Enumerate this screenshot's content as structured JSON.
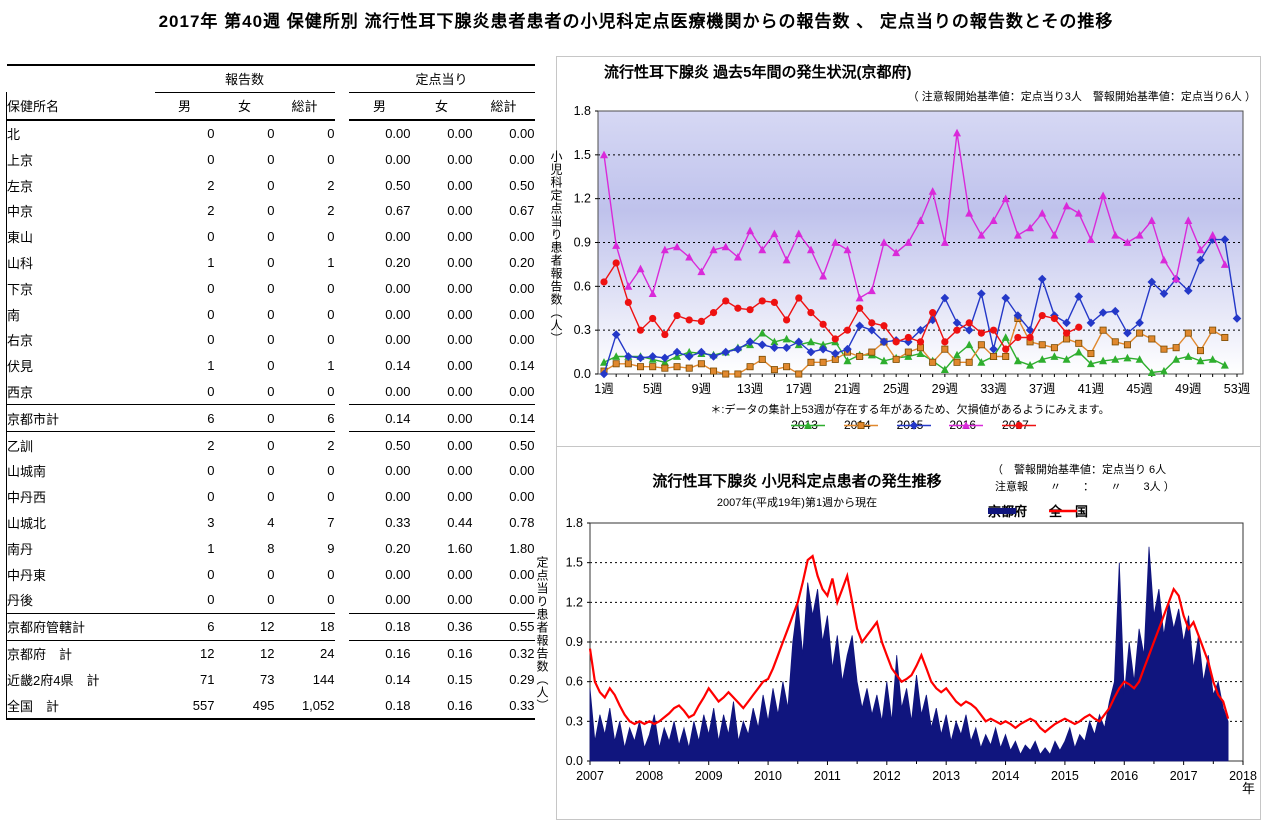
{
  "page_title": "2017年 第40週 保健所別 流行性耳下腺炎患者患者の小児科定点医療機関からの報告数 、 定点当りの報告数とその推移",
  "table": {
    "group_headers": [
      "報告数",
      "定点当り"
    ],
    "name_header": "保健所名",
    "sub_headers": [
      "男",
      "女",
      "総計",
      "男",
      "女",
      "総計"
    ],
    "sections": [
      {
        "type": "data",
        "rows": [
          [
            "北",
            "0",
            "0",
            "0",
            "0.00",
            "0.00",
            "0.00"
          ],
          [
            "上京",
            "0",
            "0",
            "0",
            "0.00",
            "0.00",
            "0.00"
          ],
          [
            "左京",
            "2",
            "0",
            "2",
            "0.50",
            "0.00",
            "0.50"
          ],
          [
            "中京",
            "2",
            "0",
            "2",
            "0.67",
            "0.00",
            "0.67"
          ],
          [
            "東山",
            "0",
            "0",
            "0",
            "0.00",
            "0.00",
            "0.00"
          ],
          [
            "山科",
            "1",
            "0",
            "1",
            "0.20",
            "0.00",
            "0.20"
          ],
          [
            "下京",
            "0",
            "0",
            "0",
            "0.00",
            "0.00",
            "0.00"
          ],
          [
            "南",
            "0",
            "0",
            "0",
            "0.00",
            "0.00",
            "0.00"
          ],
          [
            "右京",
            "0",
            "0",
            "0",
            "0.00",
            "0.00",
            "0.00"
          ],
          [
            "伏見",
            "1",
            "0",
            "1",
            "0.14",
            "0.00",
            "0.14"
          ],
          [
            "西京",
            "0",
            "0",
            "0",
            "0.00",
            "0.00",
            "0.00"
          ]
        ]
      },
      {
        "type": "summary",
        "rows": [
          [
            "京都市計",
            "6",
            "0",
            "6",
            "0.14",
            "0.00",
            "0.14"
          ]
        ]
      },
      {
        "type": "data",
        "rows": [
          [
            "乙訓",
            "2",
            "0",
            "2",
            "0.50",
            "0.00",
            "0.50"
          ],
          [
            "山城南",
            "0",
            "0",
            "0",
            "0.00",
            "0.00",
            "0.00"
          ],
          [
            "中丹西",
            "0",
            "0",
            "0",
            "0.00",
            "0.00",
            "0.00"
          ],
          [
            "山城北",
            "3",
            "4",
            "7",
            "0.33",
            "0.44",
            "0.78"
          ],
          [
            "南丹",
            "1",
            "8",
            "9",
            "0.20",
            "1.60",
            "1.80"
          ],
          [
            "中丹東",
            "0",
            "0",
            "0",
            "0.00",
            "0.00",
            "0.00"
          ],
          [
            "丹後",
            "0",
            "0",
            "0",
            "0.00",
            "0.00",
            "0.00"
          ]
        ]
      },
      {
        "type": "summary",
        "rows": [
          [
            "京都府管轄計",
            "6",
            "12",
            "18",
            "0.18",
            "0.36",
            "0.55"
          ]
        ]
      },
      {
        "type": "totals",
        "rows": [
          [
            "京都府　計",
            "12",
            "12",
            "24",
            "0.16",
            "0.16",
            "0.32"
          ],
          [
            "近畿2府4県　計",
            "71",
            "73",
            "144",
            "0.14",
            "0.15",
            "0.29"
          ],
          [
            "全国　計",
            "557",
            "495",
            "1,052",
            "0.18",
            "0.16",
            "0.33"
          ]
        ]
      }
    ]
  },
  "chart_data": [
    {
      "type": "line",
      "title": "流行性耳下腺炎 過去5年間の発生状況(京都府)",
      "subtitle": "（ 注意報開始基準値：定点当り3人　警報開始基準値：定点当り6人 ）",
      "ylabel": "小児科定点当り患者報告数（人）",
      "footnote": "＊:データの集計上53週が存在する年があるため、欠損値があるようにみえます。",
      "ylim": [
        0,
        1.8
      ],
      "ytick_step": 0.3,
      "weeks": 53,
      "xtick_labels": [
        "1週",
        "5週",
        "9週",
        "13週",
        "17週",
        "21週",
        "25週",
        "29週",
        "33週",
        "37週",
        "41週",
        "45週",
        "49週",
        "53週"
      ],
      "grid": true,
      "legend_position": "bottom",
      "plot_bg_gradient": [
        "#d6d8f4",
        "#bfc2ec",
        "#ffffff"
      ],
      "series": [
        {
          "name": "2013",
          "color": "#2eae2e",
          "marker": "triangle",
          "values": [
            0.08,
            0.12,
            0.12,
            0.12,
            0.1,
            0.08,
            0.12,
            0.15,
            0.14,
            0.13,
            0.15,
            0.18,
            0.2,
            0.28,
            0.22,
            0.24,
            0.2,
            0.22,
            0.2,
            0.22,
            0.09,
            0.13,
            0.13,
            0.09,
            0.11,
            0.12,
            0.14,
            0.09,
            0.03,
            0.13,
            0.2,
            0.08,
            0.12,
            0.25,
            0.09,
            0.06,
            0.1,
            0.12,
            0.1,
            0.15,
            0.07,
            0.09,
            0.1,
            0.11,
            0.1,
            0.01,
            0.02,
            0.1,
            0.12,
            0.09,
            0.1,
            0.06,
            null
          ]
        },
        {
          "name": "2014",
          "color": "#e0882e",
          "marker": "square",
          "values": [
            0.02,
            0.07,
            0.07,
            0.05,
            0.05,
            0.04,
            0.05,
            0.04,
            0.07,
            0.02,
            0.0,
            0.0,
            0.05,
            0.1,
            0.03,
            0.05,
            0.0,
            0.08,
            0.08,
            0.1,
            0.15,
            0.12,
            0.15,
            0.22,
            0.1,
            0.15,
            0.18,
            0.08,
            0.17,
            0.08,
            0.08,
            0.2,
            0.12,
            0.12,
            0.38,
            0.22,
            0.2,
            0.18,
            0.24,
            0.21,
            0.14,
            0.3,
            0.22,
            0.2,
            0.28,
            0.24,
            0.17,
            0.18,
            0.28,
            0.16,
            0.3,
            0.25,
            null
          ]
        },
        {
          "name": "2015",
          "color": "#2438c8",
          "marker": "diamond",
          "values": [
            0.0,
            0.27,
            0.12,
            0.11,
            0.12,
            0.11,
            0.15,
            0.12,
            0.15,
            0.12,
            0.15,
            0.17,
            0.22,
            0.2,
            0.18,
            0.18,
            0.22,
            0.15,
            0.17,
            0.14,
            0.17,
            0.33,
            0.3,
            0.22,
            0.23,
            0.22,
            0.3,
            0.37,
            0.52,
            0.35,
            0.3,
            0.55,
            0.17,
            0.52,
            0.4,
            0.3,
            0.65,
            0.4,
            0.35,
            0.53,
            0.35,
            0.42,
            0.43,
            0.28,
            0.35,
            0.63,
            0.55,
            0.65,
            0.57,
            0.78,
            0.92,
            0.92,
            0.38
          ]
        },
        {
          "name": "2016",
          "color": "#d92ad9",
          "marker": "triangle",
          "values": [
            1.5,
            0.88,
            0.6,
            0.72,
            0.55,
            0.85,
            0.87,
            0.8,
            0.7,
            0.85,
            0.87,
            0.8,
            0.98,
            0.85,
            0.96,
            0.78,
            0.96,
            0.85,
            0.67,
            0.9,
            0.85,
            0.52,
            0.57,
            0.9,
            0.83,
            0.9,
            1.05,
            1.25,
            0.9,
            1.65,
            1.1,
            0.95,
            1.05,
            1.2,
            0.95,
            1.0,
            1.1,
            0.95,
            1.15,
            1.1,
            0.92,
            1.22,
            0.95,
            0.9,
            0.95,
            1.05,
            0.78,
            0.65,
            1.05,
            0.85,
            0.95,
            0.75,
            null
          ]
        },
        {
          "name": "2017",
          "color": "#ee1111",
          "marker": "circle",
          "values": [
            0.63,
            0.76,
            0.49,
            0.3,
            0.38,
            0.27,
            0.4,
            0.37,
            0.36,
            0.42,
            0.5,
            0.45,
            0.44,
            0.5,
            0.49,
            0.37,
            0.52,
            0.42,
            0.34,
            0.24,
            0.3,
            0.45,
            0.35,
            0.33,
            0.22,
            0.25,
            0.22,
            0.42,
            0.22,
            0.3,
            0.35,
            0.28,
            0.3,
            0.17,
            0.25,
            0.25,
            0.4,
            0.38,
            0.28,
            0.32,
            null,
            null,
            null,
            null,
            null,
            null,
            null,
            null,
            null,
            null,
            null,
            null,
            null
          ]
        }
      ]
    },
    {
      "type": "area+line",
      "title": "流行性耳下腺炎  小児科定点患者の発生推移",
      "subtitle": "2007年(平成19年)第1週から現在",
      "note_line1": "（　警報開始基準値：定点当り 6人",
      "note_line2": " 注意報　　〃　　：　　〃　　3人 ）",
      "ylabel": "定点当り患者報告数（人）",
      "xlabel": "年",
      "ylim": [
        0,
        1.8
      ],
      "ytick_step": 0.3,
      "x_range": [
        2007,
        2018
      ],
      "xtick_labels": [
        "2007",
        "2008",
        "2009",
        "2010",
        "2011",
        "2012",
        "2013",
        "2014",
        "2015",
        "2016",
        "2017",
        "2018"
      ],
      "grid": true,
      "sample_step_years": 0.08333,
      "series": [
        {
          "name": "京都府",
          "type": "area",
          "color": "#10157e",
          "values": [
            0.55,
            0.15,
            0.35,
            0.2,
            0.4,
            0.15,
            0.3,
            0.1,
            0.25,
            0.15,
            0.3,
            0.1,
            0.2,
            0.35,
            0.1,
            0.25,
            0.15,
            0.3,
            0.12,
            0.25,
            0.1,
            0.3,
            0.15,
            0.35,
            0.2,
            0.4,
            0.15,
            0.35,
            0.2,
            0.45,
            0.15,
            0.3,
            0.2,
            0.4,
            0.25,
            0.5,
            0.3,
            0.55,
            0.35,
            0.6,
            0.4,
            0.9,
            1.2,
            0.8,
            1.35,
            1.1,
            1.3,
            0.9,
            1.1,
            0.7,
            0.95,
            0.6,
            0.8,
            0.95,
            0.6,
            0.4,
            0.55,
            0.35,
            0.5,
            0.3,
            0.6,
            0.3,
            0.8,
            0.4,
            0.55,
            0.3,
            0.65,
            0.35,
            0.5,
            0.25,
            0.4,
            0.2,
            0.35,
            0.15,
            0.3,
            0.2,
            0.35,
            0.15,
            0.25,
            0.1,
            0.2,
            0.12,
            0.25,
            0.1,
            0.2,
            0.08,
            0.15,
            0.05,
            0.12,
            0.08,
            0.15,
            0.05,
            0.1,
            0.05,
            0.15,
            0.08,
            0.15,
            0.25,
            0.1,
            0.2,
            0.15,
            0.3,
            0.2,
            0.35,
            0.25,
            0.45,
            0.6,
            1.5,
            0.5,
            0.9,
            0.6,
            1.0,
            0.8,
            1.62,
            1.1,
            1.3,
            0.95,
            1.2,
            1.0,
            1.15,
            0.9,
            1.1,
            0.7,
            0.95,
            0.6,
            0.8,
            0.5,
            0.6,
            0.4,
            0.3
          ]
        },
        {
          "name": "全　国",
          "type": "line",
          "color": "#ff0000",
          "values": [
            0.85,
            0.6,
            0.52,
            0.48,
            0.55,
            0.5,
            0.42,
            0.35,
            0.3,
            0.28,
            0.3,
            0.28,
            0.3,
            0.28,
            0.3,
            0.33,
            0.36,
            0.4,
            0.42,
            0.38,
            0.33,
            0.35,
            0.42,
            0.48,
            0.55,
            0.5,
            0.45,
            0.48,
            0.52,
            0.48,
            0.44,
            0.4,
            0.45,
            0.5,
            0.55,
            0.6,
            0.62,
            0.7,
            0.8,
            0.9,
            1.0,
            1.1,
            1.2,
            1.35,
            1.52,
            1.55,
            1.4,
            1.3,
            1.25,
            1.38,
            1.2,
            1.3,
            1.4,
            1.2,
            1.0,
            0.9,
            0.95,
            1.0,
            1.05,
            0.9,
            0.8,
            0.7,
            0.65,
            0.6,
            0.62,
            0.65,
            0.72,
            0.8,
            0.7,
            0.6,
            0.55,
            0.52,
            0.55,
            0.5,
            0.45,
            0.42,
            0.45,
            0.43,
            0.4,
            0.35,
            0.3,
            0.32,
            0.3,
            0.28,
            0.3,
            0.28,
            0.25,
            0.28,
            0.3,
            0.32,
            0.3,
            0.25,
            0.22,
            0.25,
            0.28,
            0.3,
            0.32,
            0.3,
            0.28,
            0.3,
            0.33,
            0.35,
            0.32,
            0.3,
            0.35,
            0.4,
            0.48,
            0.55,
            0.6,
            0.58,
            0.55,
            0.6,
            0.7,
            0.8,
            0.9,
            1.0,
            1.1,
            1.2,
            1.3,
            1.25,
            1.1,
            1.0,
            1.05,
            0.95,
            0.85,
            0.75,
            0.6,
            0.5,
            0.45,
            0.32
          ]
        }
      ]
    }
  ]
}
